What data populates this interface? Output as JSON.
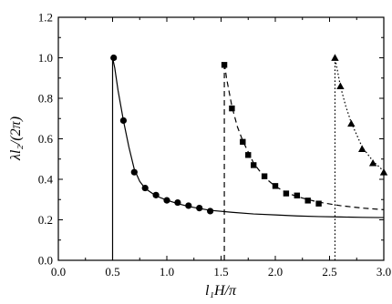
{
  "chart_data": {
    "type": "scatter",
    "title": "",
    "xlabel": "l₁H/π",
    "ylabel": "λl₂/(2π)",
    "xlim": [
      0.0,
      3.0
    ],
    "ylim": [
      0.0,
      1.2
    ],
    "xticks": [
      "0.0",
      "0.5",
      "1.0",
      "1.5",
      "2.0",
      "2.5",
      "3.0"
    ],
    "yticks": [
      "0.0",
      "0.2",
      "0.4",
      "0.6",
      "0.8",
      "1.0",
      "1.2"
    ],
    "grid": false,
    "legend": "none",
    "series": [
      {
        "marker": "circle",
        "line_style": "solid",
        "color": "#000000",
        "points": [
          [
            0.51,
            1.0
          ],
          [
            0.6,
            0.69
          ],
          [
            0.7,
            0.435
          ],
          [
            0.8,
            0.357
          ],
          [
            0.9,
            0.322
          ],
          [
            1.0,
            0.296
          ],
          [
            1.1,
            0.285
          ],
          [
            1.2,
            0.27
          ],
          [
            1.3,
            0.258
          ],
          [
            1.4,
            0.243
          ]
        ],
        "curve": [
          [
            0.5,
            0.0
          ],
          [
            0.5,
            1.0
          ],
          [
            0.52,
            0.95
          ],
          [
            0.55,
            0.84
          ],
          [
            0.6,
            0.69
          ],
          [
            0.65,
            0.56
          ],
          [
            0.7,
            0.45
          ],
          [
            0.75,
            0.39
          ],
          [
            0.8,
            0.355
          ],
          [
            0.9,
            0.318
          ],
          [
            1.0,
            0.297
          ],
          [
            1.1,
            0.28
          ],
          [
            1.2,
            0.266
          ],
          [
            1.3,
            0.256
          ],
          [
            1.4,
            0.247
          ],
          [
            1.6,
            0.237
          ],
          [
            1.8,
            0.229
          ],
          [
            2.0,
            0.224
          ],
          [
            2.2,
            0.219
          ],
          [
            2.4,
            0.216
          ],
          [
            2.6,
            0.214
          ],
          [
            2.8,
            0.212
          ],
          [
            3.0,
            0.211
          ]
        ]
      },
      {
        "marker": "square",
        "line_style": "dashed",
        "color": "#000000",
        "points": [
          [
            1.53,
            0.965
          ],
          [
            1.6,
            0.75
          ],
          [
            1.7,
            0.585
          ],
          [
            1.75,
            0.52
          ],
          [
            1.8,
            0.47
          ],
          [
            1.9,
            0.415
          ],
          [
            2.0,
            0.367
          ],
          [
            2.1,
            0.33
          ],
          [
            2.2,
            0.32
          ],
          [
            2.3,
            0.295
          ],
          [
            2.4,
            0.28
          ]
        ],
        "curve": [
          [
            1.53,
            0.0
          ],
          [
            1.53,
            0.98
          ],
          [
            1.55,
            0.9
          ],
          [
            1.6,
            0.76
          ],
          [
            1.65,
            0.66
          ],
          [
            1.7,
            0.59
          ],
          [
            1.8,
            0.48
          ],
          [
            1.9,
            0.41
          ],
          [
            2.0,
            0.365
          ],
          [
            2.1,
            0.335
          ],
          [
            2.2,
            0.315
          ],
          [
            2.3,
            0.3
          ],
          [
            2.4,
            0.287
          ],
          [
            2.6,
            0.27
          ],
          [
            2.8,
            0.258
          ],
          [
            3.0,
            0.25
          ]
        ]
      },
      {
        "marker": "triangle",
        "line_style": "dotted",
        "color": "#000000",
        "points": [
          [
            2.55,
            1.0
          ],
          [
            2.6,
            0.86
          ],
          [
            2.7,
            0.675
          ],
          [
            2.8,
            0.55
          ],
          [
            2.9,
            0.48
          ],
          [
            3.0,
            0.435
          ]
        ],
        "curve": [
          [
            2.55,
            0.0
          ],
          [
            2.55,
            1.0
          ],
          [
            2.6,
            0.86
          ],
          [
            2.65,
            0.76
          ],
          [
            2.7,
            0.68
          ],
          [
            2.8,
            0.56
          ],
          [
            2.9,
            0.49
          ],
          [
            3.0,
            0.44
          ]
        ]
      }
    ]
  }
}
